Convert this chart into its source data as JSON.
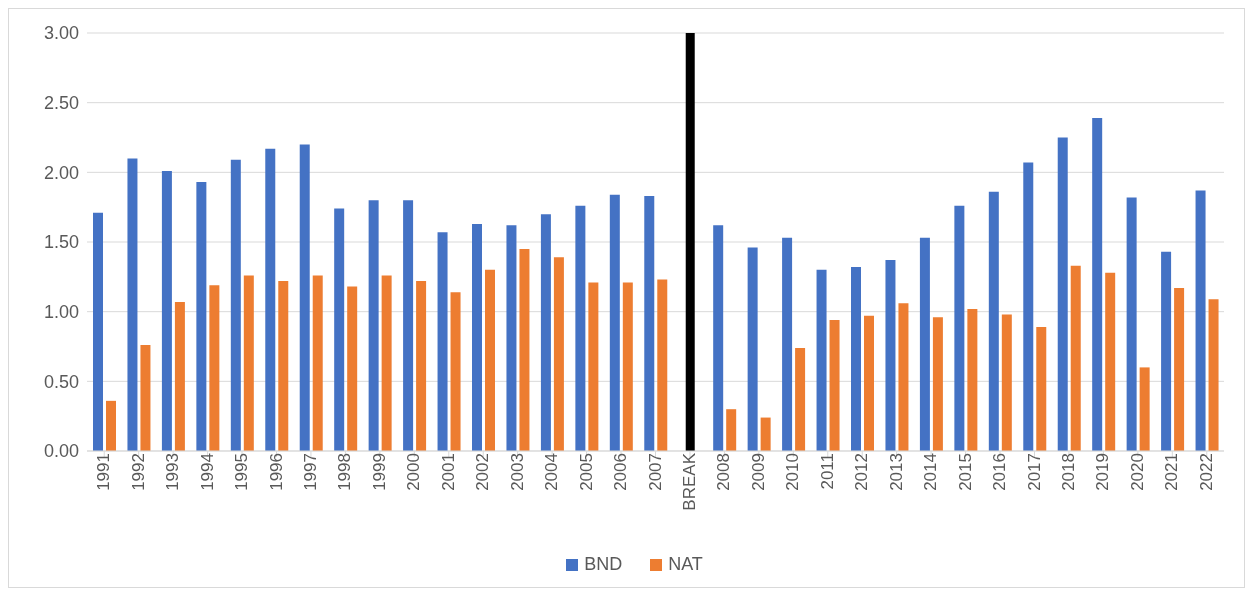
{
  "chart_data": {
    "type": "bar",
    "categories": [
      "1991",
      "1992",
      "1993",
      "1994",
      "1995",
      "1996",
      "1997",
      "1998",
      "1999",
      "2000",
      "2001",
      "2002",
      "2003",
      "2004",
      "2005",
      "2006",
      "2007",
      "BREAK",
      "2008",
      "2009",
      "2010",
      "2011",
      "2012",
      "2013",
      "2014",
      "2015",
      "2016",
      "2017",
      "2018",
      "2019",
      "2020",
      "2021",
      "2022"
    ],
    "series": [
      {
        "name": "BND",
        "color": "#4472c4",
        "values": [
          1.71,
          2.1,
          2.01,
          1.93,
          2.09,
          2.17,
          2.2,
          1.74,
          1.8,
          1.8,
          1.57,
          1.63,
          1.62,
          1.7,
          1.76,
          1.84,
          1.83,
          null,
          1.62,
          1.46,
          1.53,
          1.3,
          1.32,
          1.37,
          1.53,
          1.76,
          1.86,
          2.07,
          2.25,
          2.39,
          1.82,
          1.43,
          1.87
        ]
      },
      {
        "name": "NAT",
        "color": "#ed7d31",
        "values": [
          0.36,
          0.76,
          1.07,
          1.19,
          1.26,
          1.22,
          1.26,
          1.18,
          1.26,
          1.22,
          1.14,
          1.3,
          1.45,
          1.39,
          1.21,
          1.21,
          1.23,
          null,
          0.3,
          0.24,
          0.74,
          0.94,
          0.97,
          1.06,
          0.96,
          1.02,
          0.98,
          0.89,
          1.33,
          1.28,
          0.6,
          1.17,
          1.09
        ]
      },
      {
        "color": "#000000",
        "values": [
          null,
          null,
          null,
          null,
          null,
          null,
          null,
          null,
          null,
          null,
          null,
          null,
          null,
          null,
          null,
          null,
          null,
          3.0,
          null,
          null,
          null,
          null,
          null,
          null,
          null,
          null,
          null,
          null,
          null,
          null,
          null,
          null,
          null
        ]
      }
    ],
    "ylim": [
      0,
      3
    ],
    "yticks": [
      {
        "value": 0,
        "label": "0.00"
      },
      {
        "value": 0.5,
        "label": "0.50"
      },
      {
        "value": 1,
        "label": "1.00"
      },
      {
        "value": 1.5,
        "label": "1.50"
      },
      {
        "value": 2,
        "label": "2.00"
      },
      {
        "value": 2.5,
        "label": "2.50"
      },
      {
        "value": 3,
        "label": "3.00"
      }
    ],
    "grid": "y",
    "legend": "bottom"
  }
}
